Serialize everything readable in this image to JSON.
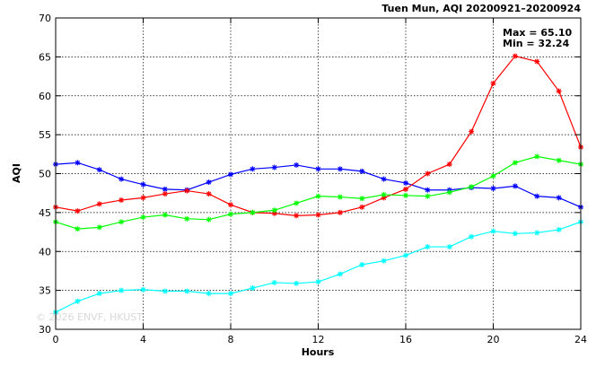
{
  "chart_data": {
    "type": "line",
    "title": "Tuen Mun, AQI 20200921–20200924",
    "xlabel": "Hours",
    "ylabel": "AQI",
    "xlim": [
      0,
      24
    ],
    "ylim": [
      30,
      70
    ],
    "xticks": [
      0,
      4,
      8,
      12,
      16,
      20,
      24
    ],
    "yticks": [
      30,
      35,
      40,
      45,
      50,
      55,
      60,
      65,
      70
    ],
    "grid": true,
    "stats": {
      "max_label": "Max = 65.10",
      "min_label": "Min = 32.24"
    },
    "watermark": "© 2026  ENVF, HKUST",
    "x": [
      0,
      1,
      2,
      3,
      4,
      5,
      6,
      7,
      8,
      9,
      10,
      11,
      12,
      13,
      14,
      15,
      16,
      17,
      18,
      19,
      20,
      21,
      22,
      23,
      24
    ],
    "series": [
      {
        "color": "#0000ff",
        "values": [
          51.2,
          51.4,
          50.5,
          49.3,
          48.6,
          48.0,
          47.9,
          48.9,
          49.9,
          50.6,
          50.8,
          51.1,
          50.6,
          50.6,
          50.3,
          49.3,
          48.8,
          47.9,
          47.9,
          48.2,
          48.1,
          48.4,
          47.1,
          46.9,
          45.7
        ]
      },
      {
        "color": "#ff0000",
        "values": [
          45.7,
          45.2,
          46.1,
          46.6,
          46.9,
          47.4,
          47.8,
          47.4,
          46.0,
          45.0,
          44.9,
          44.6,
          44.7,
          45.0,
          45.7,
          46.9,
          48.0,
          50.0,
          51.2,
          55.4,
          61.6,
          65.1,
          64.4,
          60.6,
          53.4
        ]
      },
      {
        "color": "#00ff00",
        "values": [
          43.8,
          42.9,
          43.1,
          43.8,
          44.4,
          44.7,
          44.2,
          44.1,
          44.8,
          45.0,
          45.3,
          46.2,
          47.1,
          47.0,
          46.8,
          47.3,
          47.2,
          47.1,
          47.6,
          48.3,
          49.7,
          51.4,
          52.2,
          51.7,
          51.2
        ]
      },
      {
        "color": "#00ffff",
        "values": [
          32.2,
          33.6,
          34.6,
          35.0,
          35.1,
          34.9,
          34.9,
          34.6,
          34.6,
          35.3,
          36.0,
          35.9,
          36.1,
          37.1,
          38.3,
          38.8,
          39.5,
          40.6,
          40.6,
          41.9,
          42.6,
          42.3,
          42.4,
          42.8,
          43.8
        ]
      }
    ]
  }
}
